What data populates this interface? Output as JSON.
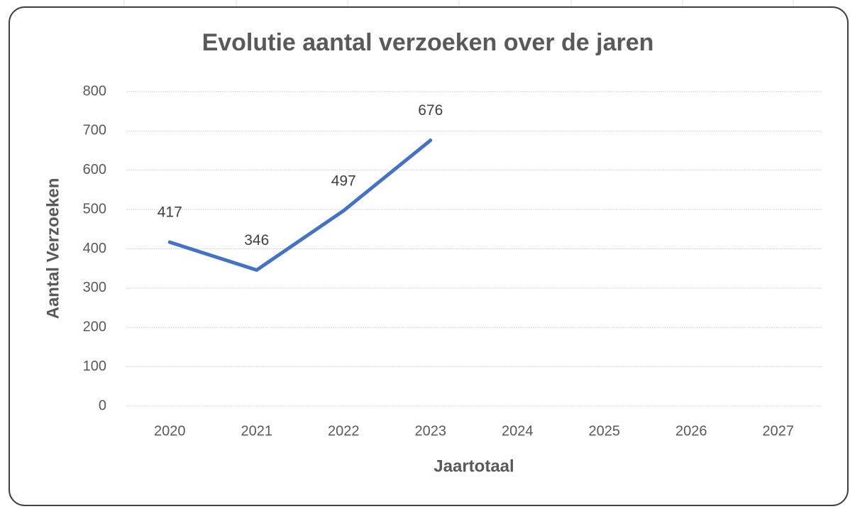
{
  "chart_data": {
    "type": "line",
    "title": "Evolutie aantal verzoeken over de jaren",
    "x_label": "Jaartotaal",
    "y_label": "Aantal Verzoeken",
    "categories": [
      "2020",
      "2021",
      "2022",
      "2023",
      "2024",
      "2025",
      "2026",
      "2027"
    ],
    "series": [
      {
        "name": "Aantal Verzoeken",
        "color": "#4472c4",
        "values": [
          417,
          346,
          497,
          676,
          null,
          null,
          null,
          null
        ]
      }
    ],
    "ylim": [
      0,
      800
    ],
    "yticks": [
      0,
      100,
      200,
      300,
      400,
      500,
      600,
      700,
      800
    ],
    "grid": true,
    "data_labels": true
  }
}
